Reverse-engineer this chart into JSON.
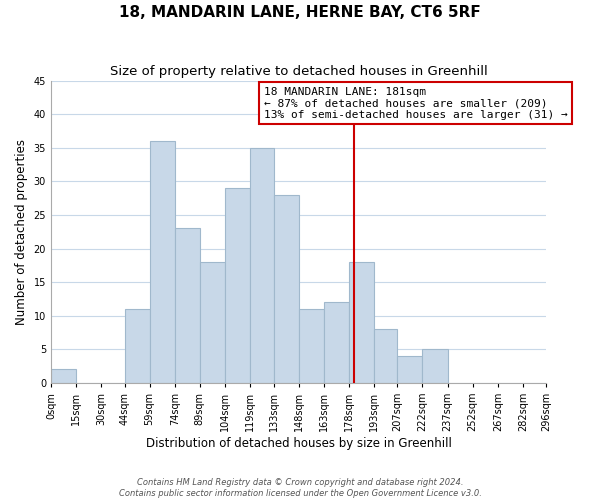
{
  "title": "18, MANDARIN LANE, HERNE BAY, CT6 5RF",
  "subtitle": "Size of property relative to detached houses in Greenhill",
  "xlabel": "Distribution of detached houses by size in Greenhill",
  "ylabel": "Number of detached properties",
  "footer_line1": "Contains HM Land Registry data © Crown copyright and database right 2024.",
  "footer_line2": "Contains public sector information licensed under the Open Government Licence v3.0.",
  "bar_left_edges": [
    0,
    15,
    30,
    44,
    59,
    74,
    89,
    104,
    119,
    133,
    148,
    163,
    178,
    193,
    207,
    222,
    237,
    252,
    267,
    282
  ],
  "bar_heights": [
    2,
    0,
    0,
    11,
    36,
    23,
    18,
    29,
    35,
    28,
    11,
    12,
    18,
    8,
    4,
    5,
    0,
    0,
    0,
    0
  ],
  "bar_widths": [
    15,
    14,
    14,
    15,
    15,
    15,
    15,
    15,
    14,
    15,
    15,
    15,
    15,
    14,
    15,
    15,
    15,
    15,
    15,
    14
  ],
  "bar_color": "#c8d8e8",
  "bar_edgecolor": "#a0b8cc",
  "grid_color": "#c8d8e8",
  "vline_x": 181,
  "vline_color": "#cc0000",
  "xtick_labels": [
    "0sqm",
    "15sqm",
    "30sqm",
    "44sqm",
    "59sqm",
    "74sqm",
    "89sqm",
    "104sqm",
    "119sqm",
    "133sqm",
    "148sqm",
    "163sqm",
    "178sqm",
    "193sqm",
    "207sqm",
    "222sqm",
    "237sqm",
    "252sqm",
    "267sqm",
    "282sqm",
    "296sqm"
  ],
  "xtick_positions": [
    0,
    15,
    30,
    44,
    59,
    74,
    89,
    104,
    119,
    133,
    148,
    163,
    178,
    193,
    207,
    222,
    237,
    252,
    267,
    282,
    296
  ],
  "xlim": [
    0,
    296
  ],
  "ylim": [
    0,
    45
  ],
  "yticks": [
    0,
    5,
    10,
    15,
    20,
    25,
    30,
    35,
    40,
    45
  ],
  "annotation_title": "18 MANDARIN LANE: 181sqm",
  "annotation_line2": "← 87% of detached houses are smaller (209)",
  "annotation_line3": "13% of semi-detached houses are larger (31) →",
  "title_fontsize": 11,
  "subtitle_fontsize": 9.5,
  "label_fontsize": 8.5,
  "tick_fontsize": 7,
  "annotation_fontsize": 8,
  "footer_fontsize": 6
}
